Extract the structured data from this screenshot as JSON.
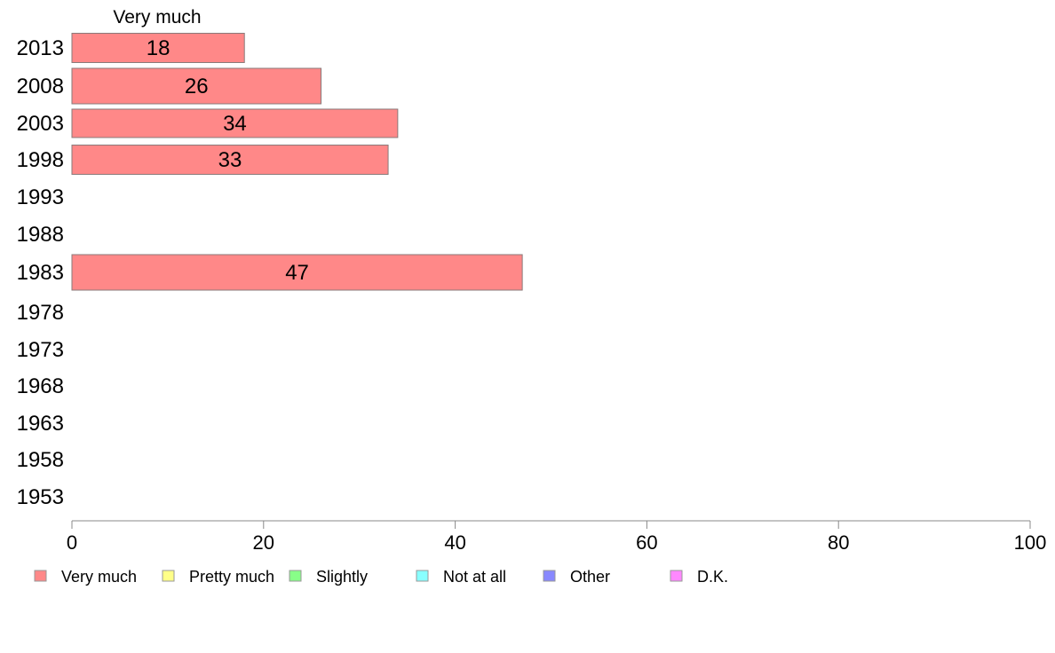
{
  "chart_data": {
    "type": "bar",
    "orientation": "horizontal",
    "stacked": true,
    "series_header": "Very much",
    "categories": [
      "2013",
      "2008",
      "2003",
      "1998",
      "1993",
      "1988",
      "1983",
      "1978",
      "1973",
      "1968",
      "1963",
      "1958",
      "1953"
    ],
    "series": [
      {
        "name": "Very much",
        "color": "#ff8888",
        "values": [
          18,
          26,
          34,
          33,
          null,
          null,
          47,
          null,
          null,
          null,
          null,
          null,
          null
        ]
      },
      {
        "name": "Pretty much",
        "color": "#ffff88",
        "values": [
          null,
          null,
          null,
          null,
          null,
          null,
          null,
          null,
          null,
          null,
          null,
          null,
          null
        ]
      },
      {
        "name": "Slightly",
        "color": "#88ff88",
        "values": [
          null,
          null,
          null,
          null,
          null,
          null,
          null,
          null,
          null,
          null,
          null,
          null,
          null
        ]
      },
      {
        "name": "Not at all",
        "color": "#88ffff",
        "values": [
          null,
          null,
          null,
          null,
          null,
          null,
          null,
          null,
          null,
          null,
          null,
          null,
          null
        ]
      },
      {
        "name": "Other",
        "color": "#8888ff",
        "values": [
          null,
          null,
          null,
          null,
          null,
          null,
          null,
          null,
          null,
          null,
          null,
          null,
          null
        ]
      },
      {
        "name": "D.K.",
        "color": "#ff88ff",
        "values": [
          null,
          null,
          null,
          null,
          null,
          null,
          null,
          null,
          null,
          null,
          null,
          null,
          null
        ]
      }
    ],
    "xlim": [
      0,
      100
    ],
    "xticks": [
      0,
      20,
      40,
      60,
      80,
      100
    ],
    "grid": false,
    "legend_position": "bottom"
  }
}
